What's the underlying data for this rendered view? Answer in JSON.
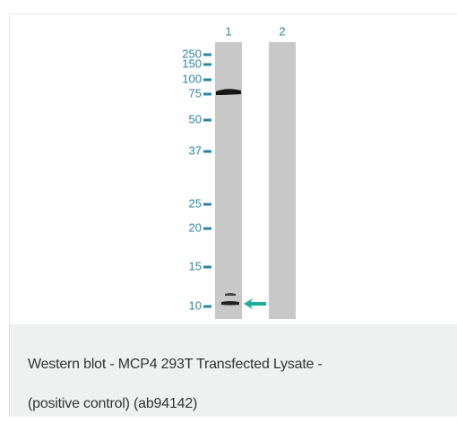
{
  "figure": {
    "lanes": [
      "1",
      "2"
    ],
    "markers": [
      "250",
      "150",
      "100",
      "75",
      "50",
      "37",
      "25",
      "20",
      "15",
      "10"
    ]
  },
  "caption": {
    "lines": [
      "Western blot - MCP4 293T Transfected Lysate -",
      "(positive control) (ab94142)"
    ]
  }
}
